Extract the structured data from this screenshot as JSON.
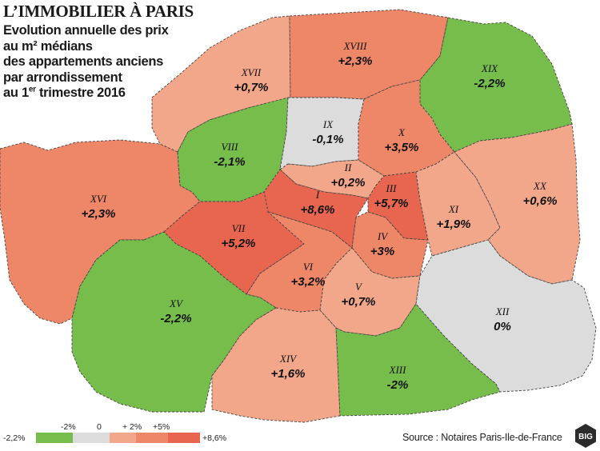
{
  "header": {
    "title": "L’IMMOBILIER À PARIS",
    "subtitle_lines": [
      "Evolution annuelle des prix",
      "au m² médians",
      "des appartements anciens",
      "par arrondissement"
    ],
    "subtitle_last_prefix": "au 1",
    "subtitle_last_sup": "er",
    "subtitle_last_suffix": " trimestre 2016"
  },
  "colors": {
    "green": "#77bd4c",
    "grey": "#dcdcdc",
    "light_salmon": "#f3a78a",
    "salmon": "#ee8668",
    "red": "#e8664f"
  },
  "arrondissements": [
    {
      "name": "I",
      "value": "+8,6%",
      "change": 8.6,
      "color": "red"
    },
    {
      "name": "II",
      "value": "+0,2%",
      "change": 0.2,
      "color": "light_salmon"
    },
    {
      "name": "III",
      "value": "+5,7%",
      "change": 5.7,
      "color": "red"
    },
    {
      "name": "IV",
      "value": "+3%",
      "change": 3,
      "color": "salmon"
    },
    {
      "name": "V",
      "value": "+0,7%",
      "change": 0.7,
      "color": "light_salmon"
    },
    {
      "name": "VI",
      "value": "+3,2%",
      "change": 3.2,
      "color": "salmon"
    },
    {
      "name": "VII",
      "value": "+5,2%",
      "change": 5.2,
      "color": "red"
    },
    {
      "name": "VIII",
      "value": "-2,1%",
      "change": -2.1,
      "color": "green"
    },
    {
      "name": "IX",
      "value": "-0,1%",
      "change": -0.1,
      "color": "grey"
    },
    {
      "name": "X",
      "value": "+3,5%",
      "change": 3.5,
      "color": "salmon"
    },
    {
      "name": "XI",
      "value": "+1,9%",
      "change": 1.9,
      "color": "light_salmon"
    },
    {
      "name": "XII",
      "value": "0%",
      "change": 0,
      "color": "grey"
    },
    {
      "name": "XIII",
      "value": "-2%",
      "change": -2,
      "color": "green"
    },
    {
      "name": "XIV",
      "value": "+1,6%",
      "change": 1.6,
      "color": "light_salmon"
    },
    {
      "name": "XV",
      "value": "-2,2%",
      "change": -2.2,
      "color": "green"
    },
    {
      "name": "XVI",
      "value": "+2,3%",
      "change": 2.3,
      "color": "salmon"
    },
    {
      "name": "XVII",
      "value": "+0,7%",
      "change": 0.7,
      "color": "light_salmon"
    },
    {
      "name": "XVIII",
      "value": "+2,3%",
      "change": 2.3,
      "color": "salmon"
    },
    {
      "name": "XIX",
      "value": "-2,2%",
      "change": -2.2,
      "color": "green"
    },
    {
      "name": "XX",
      "value": "+0,6%",
      "change": 0.6,
      "color": "light_salmon"
    }
  ],
  "legend": {
    "min_label": "-2,2%",
    "max_label": "+8,6%",
    "ticks": [
      "-2%",
      "0",
      "+ 2%",
      "+5%"
    ],
    "swatches": [
      "green",
      "grey",
      "light_salmon",
      "salmon",
      "red"
    ]
  },
  "source": "Source : Notaires Paris-Ile-de-France",
  "logo_text": "BIG"
}
